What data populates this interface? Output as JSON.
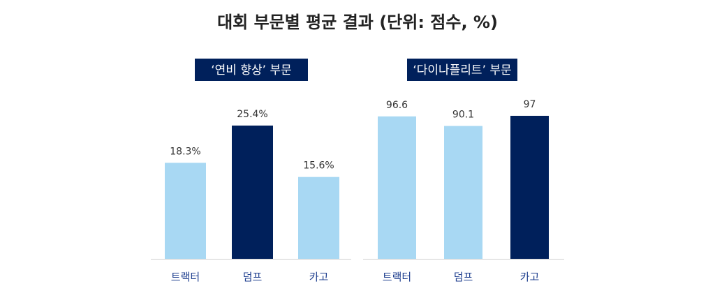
{
  "title": "대회 부문별 평균 결과 (단위: 점수, %)",
  "colors": {
    "light": "#a8d8f3",
    "dark": "#00205b",
    "axis": "#cfcfcf",
    "category_text": "#1f3f8f"
  },
  "chart_data": [
    {
      "type": "bar",
      "title": "‘연비 향상’ 부문",
      "categories": [
        "트랙터",
        "덤프",
        "카고"
      ],
      "values": [
        18.3,
        25.4,
        15.6
      ],
      "value_labels": [
        "18.3%",
        "25.4%",
        "15.6%"
      ],
      "highlight_index": 1,
      "ylim": [
        0,
        30
      ],
      "grid": false,
      "xlabel": "",
      "ylabel": ""
    },
    {
      "type": "bar",
      "title": "‘다이나플리트’ 부문",
      "categories": [
        "트랙터",
        "덤프",
        "카고"
      ],
      "values": [
        96.6,
        90.1,
        97
      ],
      "value_labels": [
        "96.6",
        "90.1",
        "97"
      ],
      "highlight_index": 2,
      "ylim": [
        0,
        97
      ],
      "grid": false,
      "xlabel": "",
      "ylabel": ""
    }
  ]
}
